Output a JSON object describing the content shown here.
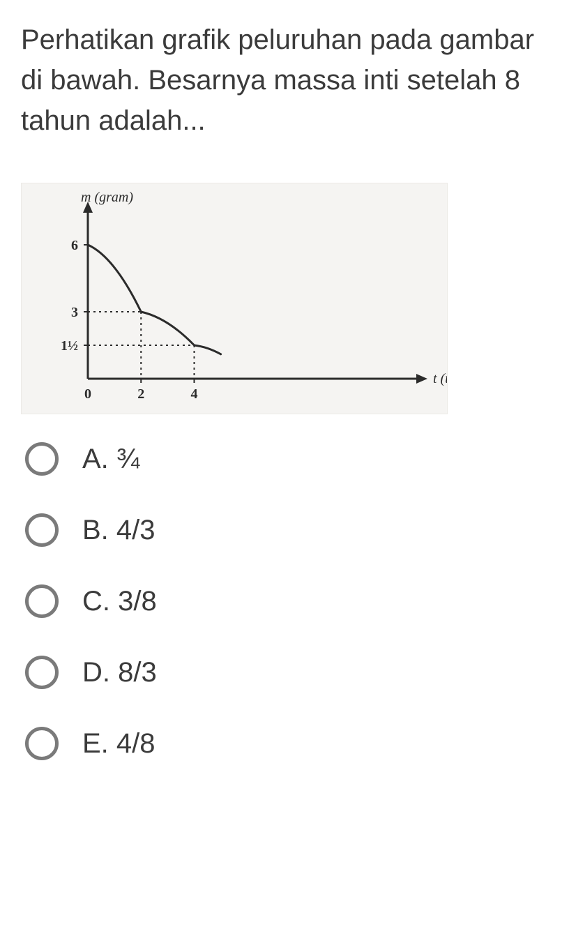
{
  "question": {
    "text": "Perhatikan grafik peluruhan pada gambar di bawah. Besarnya massa inti setelah 8 tahun adalah..."
  },
  "chart": {
    "type": "decay-curve",
    "y_label": "m (gram)",
    "x_label": "t (tahun)",
    "background_color": "#f5f4f2",
    "axis_color": "#2b2b2b",
    "curve_color": "#2b2b2b",
    "guide_line_style": "dotted",
    "y_ticks": [
      {
        "value": 6,
        "label": "6"
      },
      {
        "value": 3,
        "label": "3"
      },
      {
        "value": 1.5,
        "label": "1½"
      }
    ],
    "x_ticks": [
      {
        "value": 0,
        "label": "0"
      },
      {
        "value": 2,
        "label": "2"
      },
      {
        "value": 4,
        "label": "4"
      }
    ],
    "curve_points": [
      {
        "t": 0,
        "m": 6
      },
      {
        "t": 2,
        "m": 3
      },
      {
        "t": 4,
        "m": 1.5
      },
      {
        "t": 5,
        "m": 1.1
      }
    ],
    "guide_lines": [
      {
        "t": 2,
        "m": 3
      },
      {
        "t": 4,
        "m": 1.5
      }
    ],
    "y_axis_range": [
      0,
      7.5
    ],
    "x_axis_range": [
      0,
      8
    ]
  },
  "options": {
    "a": "A. ¾",
    "b": "B. 4/3",
    "c": "C. 3/8",
    "d": "D. 8/3",
    "e": "E. 4/8"
  },
  "colors": {
    "text": "#3b3b3b",
    "radio_border": "#7a7a7a",
    "page_bg": "#ffffff"
  }
}
